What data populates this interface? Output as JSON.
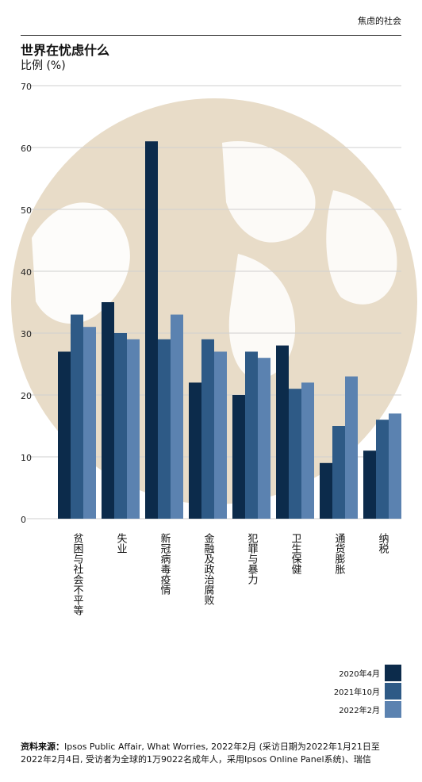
{
  "header": {
    "section_label": "焦虑的社会",
    "title": "世界在忧虑什么",
    "subtitle": "比例 (%)"
  },
  "colors": {
    "series_2020_04": "#0c2b4b",
    "series_2021_10": "#2e5a86",
    "series_2022_02": "#5b82b0",
    "globe": "#e8dcc8",
    "gridline": "#cfcfcf"
  },
  "chart_data": {
    "type": "bar",
    "categories": [
      "贫困与社会不平等",
      "失业",
      "新冠病毒疫情",
      "金融及政治腐败",
      "犯罪与暴力",
      "卫生保健",
      "通货膨胀",
      "纳税"
    ],
    "series": [
      {
        "name": "2020年4月",
        "values": [
          27,
          35,
          61,
          22,
          20,
          28,
          9,
          11
        ]
      },
      {
        "name": "2021年10月",
        "values": [
          33,
          30,
          29,
          29,
          27,
          21,
          15,
          16
        ]
      },
      {
        "name": "2022年2月",
        "values": [
          31,
          29,
          33,
          27,
          26,
          22,
          23,
          17
        ]
      }
    ],
    "yticks": [
      0,
      10,
      20,
      30,
      40,
      50,
      60,
      70
    ],
    "ylim": [
      0,
      70
    ],
    "grid": true,
    "legend_position": "bottom-right"
  },
  "source": {
    "label": "资料来源：",
    "text": "Ipsos Public Affair, What Worries, 2022年2月 (采访日期为2022年1月21日至2022年2月4日, 受访者为全球的1万9022名成年人，采用Ipsos Online Panel系统)、瑞信"
  }
}
